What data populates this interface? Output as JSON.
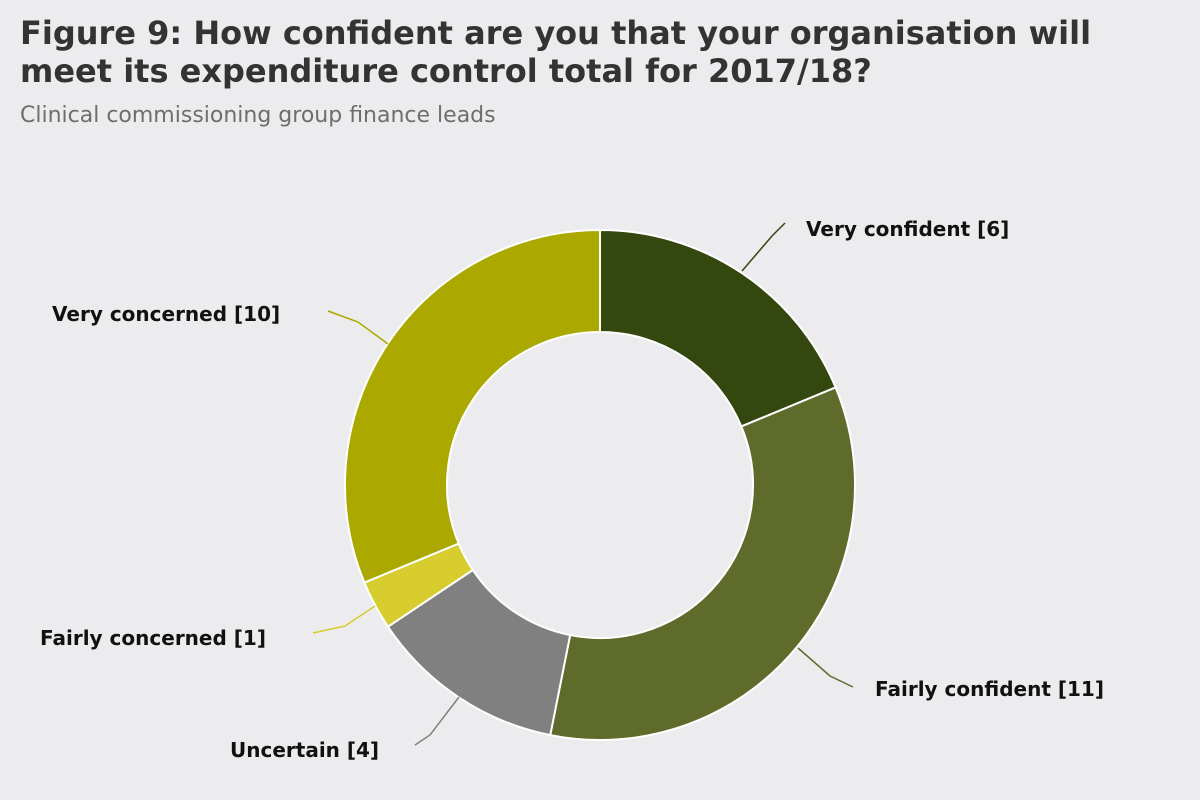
{
  "chart_data": {
    "type": "pie",
    "variant": "donut",
    "title": "Figure 9: How confident are you that your organisation will meet its expenditure control total for 2017/18?",
    "subtitle": "Clinical commissioning group finance leads",
    "categories": [
      "Very confident",
      "Fairly confident",
      "Uncertain",
      "Fairly concerned",
      "Very concerned"
    ],
    "values": [
      6,
      11,
      4,
      1,
      10
    ],
    "labels": [
      "Very confident [6]",
      "Fairly confident [11]",
      "Uncertain [4]",
      "Fairly concerned [1]",
      "Very concerned [10]"
    ],
    "colors": [
      "#33470e",
      "#5f6b2b",
      "#808080",
      "#d8cd2e",
      "#aba900"
    ],
    "legend": "none"
  }
}
